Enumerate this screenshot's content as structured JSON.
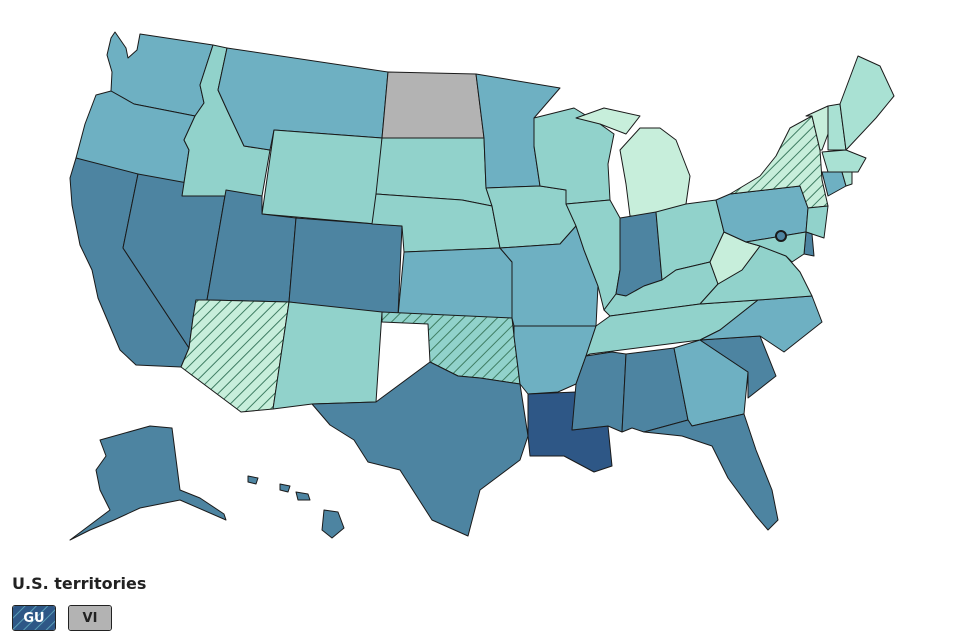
{
  "colors": {
    "lightest": "#c7eedb",
    "light": "#a9e1d3",
    "medium_light": "#91d2cb",
    "medium": "#6eb0c2",
    "medium_dark": "#5b9fb6",
    "dark": "#4d84a1",
    "darkest": "#2e5786",
    "no_data": "#b3b3b3",
    "hatch_line": "#3f7d63",
    "outline": "#1a1a1a"
  },
  "states": [
    {
      "id": "WA",
      "shade": "medium",
      "pattern": "solid"
    },
    {
      "id": "OR",
      "shade": "medium",
      "pattern": "solid"
    },
    {
      "id": "CA",
      "shade": "dark",
      "pattern": "solid"
    },
    {
      "id": "NV",
      "shade": "dark",
      "pattern": "solid"
    },
    {
      "id": "ID",
      "shade": "medium_light",
      "pattern": "solid"
    },
    {
      "id": "MT",
      "shade": "medium",
      "pattern": "solid"
    },
    {
      "id": "WY",
      "shade": "medium_light",
      "pattern": "solid"
    },
    {
      "id": "UT",
      "shade": "dark",
      "pattern": "solid"
    },
    {
      "id": "AZ",
      "shade": "lightest",
      "pattern": "hatched"
    },
    {
      "id": "CO",
      "shade": "dark",
      "pattern": "solid"
    },
    {
      "id": "NM",
      "shade": "medium_light",
      "pattern": "solid"
    },
    {
      "id": "ND",
      "shade": "no_data",
      "pattern": "solid"
    },
    {
      "id": "SD",
      "shade": "medium_light",
      "pattern": "solid"
    },
    {
      "id": "NE",
      "shade": "medium_light",
      "pattern": "solid"
    },
    {
      "id": "KS",
      "shade": "medium",
      "pattern": "solid"
    },
    {
      "id": "OK",
      "shade": "medium_light",
      "pattern": "hatched"
    },
    {
      "id": "TX",
      "shade": "dark",
      "pattern": "solid"
    },
    {
      "id": "MN",
      "shade": "medium",
      "pattern": "solid"
    },
    {
      "id": "IA",
      "shade": "medium_light",
      "pattern": "solid"
    },
    {
      "id": "MO",
      "shade": "medium",
      "pattern": "solid"
    },
    {
      "id": "AR",
      "shade": "medium",
      "pattern": "solid"
    },
    {
      "id": "LA",
      "shade": "darkest",
      "pattern": "solid"
    },
    {
      "id": "WI",
      "shade": "medium_light",
      "pattern": "solid"
    },
    {
      "id": "IL",
      "shade": "medium_light",
      "pattern": "solid"
    },
    {
      "id": "MI",
      "shade": "lightest",
      "pattern": "solid"
    },
    {
      "id": "IN",
      "shade": "dark",
      "pattern": "solid"
    },
    {
      "id": "OH",
      "shade": "medium_light",
      "pattern": "solid"
    },
    {
      "id": "KY",
      "shade": "medium_light",
      "pattern": "solid"
    },
    {
      "id": "TN",
      "shade": "medium_light",
      "pattern": "solid"
    },
    {
      "id": "MS",
      "shade": "dark",
      "pattern": "solid"
    },
    {
      "id": "AL",
      "shade": "dark",
      "pattern": "solid"
    },
    {
      "id": "GA",
      "shade": "medium",
      "pattern": "solid"
    },
    {
      "id": "FL",
      "shade": "dark",
      "pattern": "solid"
    },
    {
      "id": "SC",
      "shade": "dark",
      "pattern": "solid"
    },
    {
      "id": "NC",
      "shade": "medium",
      "pattern": "solid"
    },
    {
      "id": "VA",
      "shade": "medium_light",
      "pattern": "solid"
    },
    {
      "id": "WV",
      "shade": "lightest",
      "pattern": "solid"
    },
    {
      "id": "PA",
      "shade": "medium",
      "pattern": "solid"
    },
    {
      "id": "NY",
      "shade": "lightest",
      "pattern": "hatched"
    },
    {
      "id": "VT",
      "shade": "lightest",
      "pattern": "solid"
    },
    {
      "id": "NH",
      "shade": "light",
      "pattern": "solid"
    },
    {
      "id": "ME",
      "shade": "light",
      "pattern": "solid"
    },
    {
      "id": "MA",
      "shade": "light",
      "pattern": "solid"
    },
    {
      "id": "CT",
      "shade": "medium",
      "pattern": "solid"
    },
    {
      "id": "RI",
      "shade": "light",
      "pattern": "solid"
    },
    {
      "id": "NJ",
      "shade": "medium_light",
      "pattern": "solid"
    },
    {
      "id": "DE",
      "shade": "dark",
      "pattern": "solid"
    },
    {
      "id": "MD",
      "shade": "medium_light",
      "pattern": "solid"
    },
    {
      "id": "DC",
      "shade": "dark",
      "pattern": "solid"
    },
    {
      "id": "AK",
      "shade": "dark",
      "pattern": "solid"
    },
    {
      "id": "HI",
      "shade": "dark",
      "pattern": "solid"
    }
  ],
  "territories": {
    "title": "U.S. territories",
    "items": [
      {
        "label": "GU",
        "shade": "darkest",
        "pattern": "hatched",
        "text_color": "#ffffff"
      },
      {
        "label": "VI",
        "shade": "no_data",
        "pattern": "solid",
        "text_color": "#222222"
      }
    ]
  }
}
